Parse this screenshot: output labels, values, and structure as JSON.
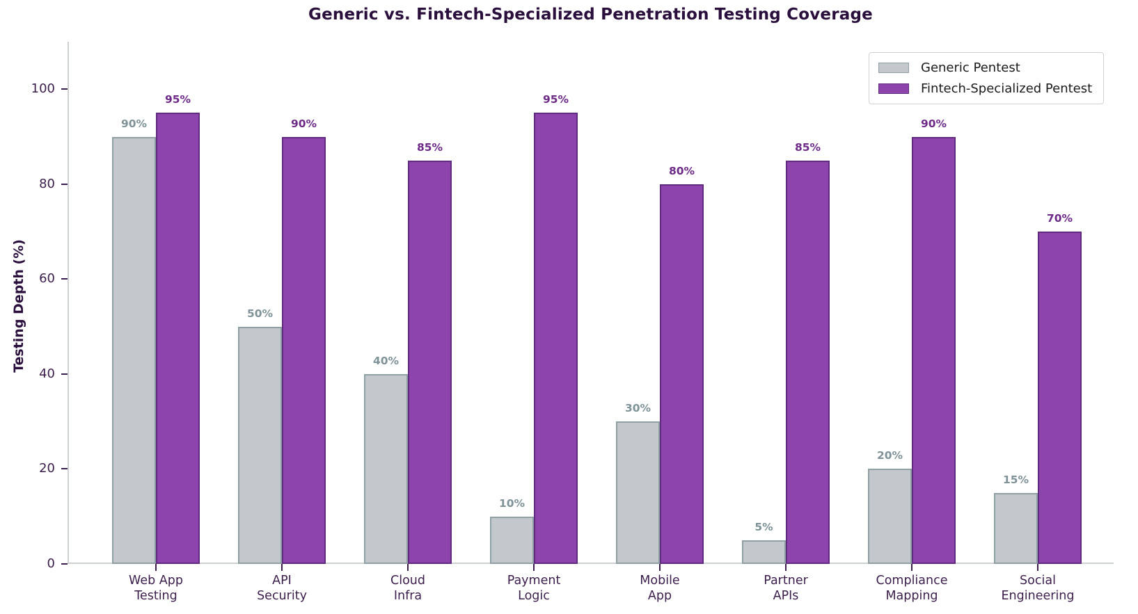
{
  "chart_data": {
    "type": "bar",
    "title": "Generic vs. Fintech-Specialized Penetration Testing Coverage",
    "xlabel": "",
    "ylabel": "Testing Depth (%)",
    "ylim": [
      0,
      110
    ],
    "yticks": [
      0,
      20,
      40,
      60,
      80,
      100
    ],
    "grid": false,
    "legend_position": "upper right",
    "categories": [
      "Web App\nTesting",
      "API\nSecurity",
      "Cloud\nInfra",
      "Payment\nLogic",
      "Mobile\nApp",
      "Partner\nAPIs",
      "Compliance\nMapping",
      "Social\nEngineering"
    ],
    "value_suffix": "%",
    "series": [
      {
        "name": "Generic Pentest",
        "values": [
          90,
          50,
          40,
          10,
          30,
          5,
          20,
          15
        ],
        "fill_color": "#c2c8cb",
        "edge_color": "#8fa0a5",
        "label_color": "#7f9297"
      },
      {
        "name": "Fintech-Specialized Pentest",
        "values": [
          95,
          90,
          85,
          95,
          80,
          85,
          90,
          70
        ],
        "fill_color": "#8d44ad",
        "edge_color": "#602a80",
        "label_color": "#6d2b87"
      }
    ]
  },
  "colors": {
    "title": "#2a0f3d",
    "axis_text": "#3b1e4b",
    "legend_text": "#1a1a1a",
    "spine": "#cfd2d3",
    "background": "#ffffff"
  }
}
